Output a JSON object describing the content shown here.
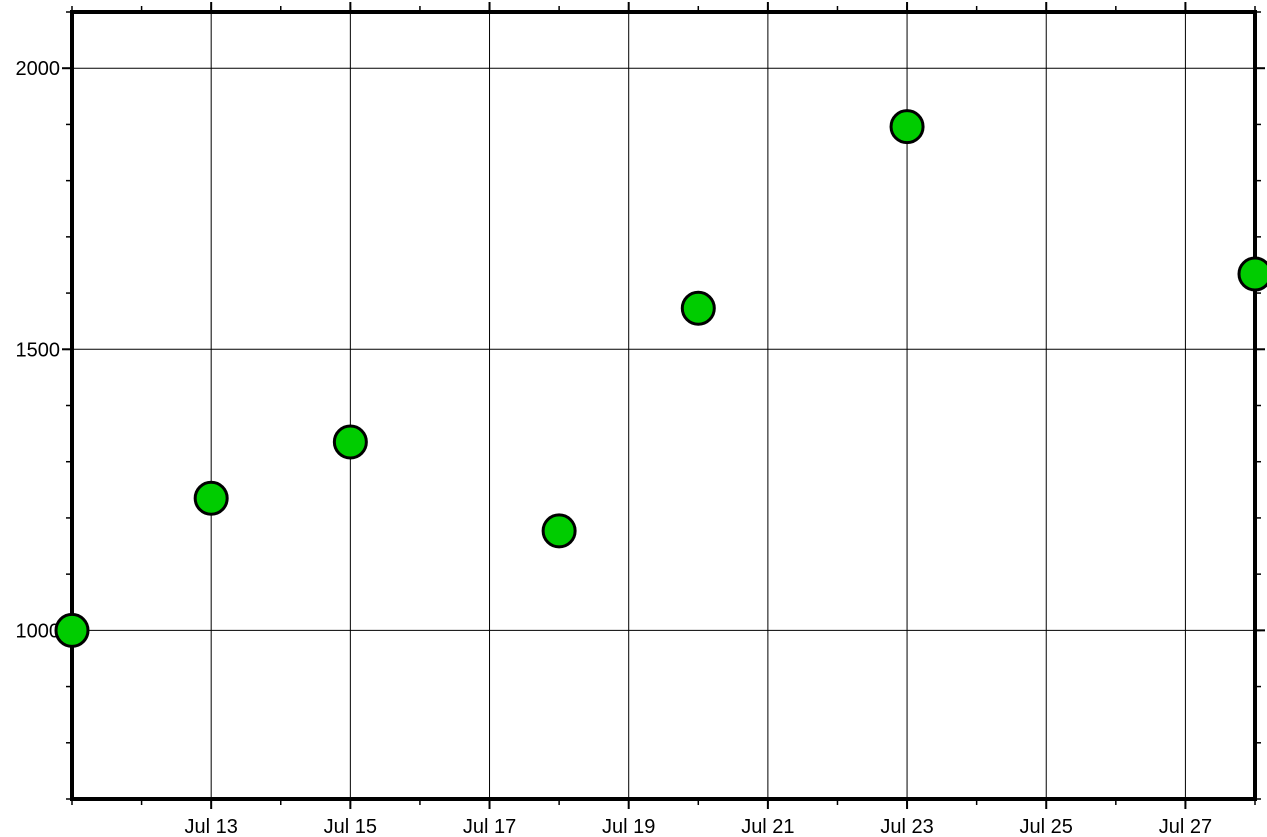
{
  "chart_data": {
    "type": "scatter",
    "title": "",
    "xlabel": "",
    "ylabel": "",
    "x_axis": {
      "type": "date",
      "range": [
        "2018-07-11",
        "2018-07-28"
      ],
      "major_ticks": [
        "2018-07-13",
        "2018-07-15",
        "2018-07-17",
        "2018-07-19",
        "2018-07-21",
        "2018-07-23",
        "2018-07-25",
        "2018-07-27"
      ],
      "tick_labels": [
        "Jul 13",
        "Jul 15",
        "Jul 17",
        "Jul 19",
        "Jul 21",
        "Jul 23",
        "Jul 25",
        "Jul 27"
      ]
    },
    "y_axis": {
      "range": [
        700,
        2100
      ],
      "major_ticks": [
        1000,
        1500,
        2000
      ],
      "tick_labels": [
        "1000",
        "1500",
        "2000"
      ],
      "minor_step": 100
    },
    "grid": true,
    "series": [
      {
        "x": [
          "2018-07-11",
          "2018-07-13",
          "2018-07-15",
          "2018-07-18",
          "2018-07-20",
          "2018-07-23",
          "2018-07-28"
        ],
        "y": [
          1000,
          1235,
          1335,
          1177,
          1573,
          1896,
          1634
        ]
      }
    ],
    "colors": {
      "marker_fill": "#00cc00",
      "marker_stroke": "#000000",
      "axis": "#000000",
      "grid": "#000000",
      "background": "#ffffff"
    }
  }
}
